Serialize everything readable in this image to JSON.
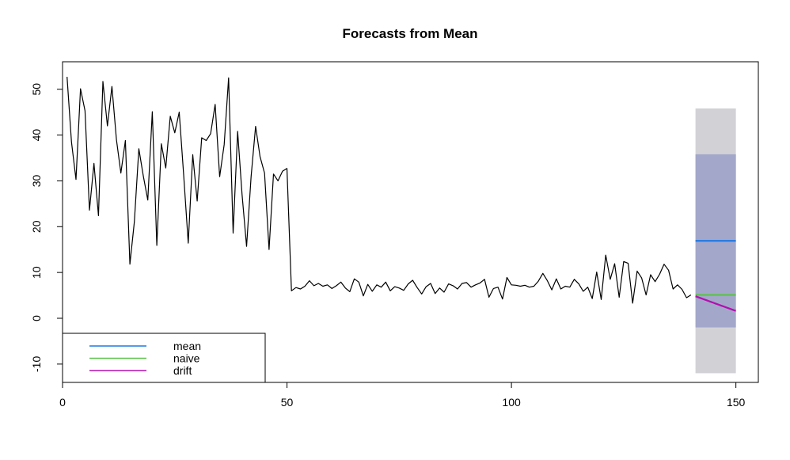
{
  "chart_data": {
    "type": "line",
    "title": "Forecasts from Mean",
    "xlabel": "",
    "ylabel": "",
    "xlim": [
      0,
      155
    ],
    "ylim": [
      -14,
      56
    ],
    "xticks": [
      0,
      50,
      100,
      150
    ],
    "yticks": [
      -10,
      0,
      10,
      20,
      30,
      40,
      50
    ],
    "grid": false,
    "history": {
      "x": [
        1,
        2,
        3,
        4,
        5,
        6,
        7,
        8,
        9,
        10,
        11,
        12,
        13,
        14,
        15,
        16,
        17,
        18,
        19,
        20,
        21,
        22,
        23,
        24,
        25,
        26,
        27,
        28,
        29,
        30,
        31,
        32,
        33,
        34,
        35,
        36,
        37,
        38,
        39,
        40,
        41,
        42,
        43,
        44,
        45,
        46,
        47,
        48,
        49,
        50,
        51,
        52,
        53,
        54,
        55,
        56,
        57,
        58,
        59,
        60,
        61,
        62,
        63,
        64,
        65,
        66,
        67,
        68,
        69,
        70,
        71,
        72,
        73,
        74,
        75,
        76,
        77,
        78,
        79,
        80,
        81,
        82,
        83,
        84,
        85,
        86,
        87,
        88,
        89,
        90,
        91,
        92,
        93,
        94,
        95,
        96,
        97,
        98,
        99,
        100,
        101,
        102,
        103,
        104,
        105,
        106,
        107,
        108,
        109,
        110,
        111,
        112,
        113,
        114,
        115,
        116,
        117,
        118,
        119,
        120,
        121,
        122,
        123,
        124,
        125,
        126,
        127,
        128,
        129,
        130,
        131,
        132,
        133,
        134,
        135,
        136,
        137,
        138,
        139,
        140
      ],
      "y": [
        52.7,
        38.5,
        30.3,
        50.1,
        45.3,
        23.6,
        33.8,
        22.4,
        51.7,
        42.0,
        50.6,
        39.0,
        31.7,
        38.8,
        11.8,
        21.0,
        37.0,
        31.0,
        25.8,
        45.1,
        15.9,
        38.1,
        32.8,
        44.1,
        40.5,
        45.0,
        31.1,
        16.4,
        35.7,
        25.6,
        39.4,
        38.8,
        40.3,
        46.7,
        30.9,
        37.9,
        52.5,
        18.6,
        40.8,
        27.0,
        15.7,
        30.9,
        41.9,
        35.3,
        31.7,
        15.0,
        31.5,
        30.0,
        32.1,
        32.7,
        6.0,
        6.7,
        6.4,
        7.0,
        8.2,
        7.1,
        7.6,
        7.0,
        7.3,
        6.5,
        7.1,
        7.9,
        6.6,
        5.8,
        8.6,
        7.9,
        4.9,
        7.4,
        5.9,
        7.3,
        6.8,
        7.9,
        6.0,
        6.9,
        6.6,
        6.1,
        7.5,
        8.3,
        6.7,
        5.3,
        6.9,
        7.6,
        5.4,
        6.6,
        5.7,
        7.5,
        7.1,
        6.4,
        7.6,
        7.8,
        6.8,
        7.3,
        7.7,
        8.5,
        4.6,
        6.5,
        6.8,
        4.2,
        8.9,
        7.3,
        7.2,
        7.0,
        7.2,
        6.8,
        7.0,
        8.1,
        9.8,
        8.2,
        6.2,
        8.6,
        6.4,
        7.0,
        6.8,
        8.5,
        7.5,
        5.9,
        6.8,
        4.3,
        10.1,
        4.1,
        13.8,
        8.5,
        11.9,
        4.6,
        12.4,
        12.0,
        3.3,
        10.3,
        8.8,
        5.1,
        9.5,
        8.0,
        9.6,
        11.8,
        10.5,
        6.4,
        7.3,
        6.3,
        4.5,
        5.1
      ]
    },
    "forecast_x": [
      141,
      150
    ],
    "interval_80": [
      -2.0,
      35.8
    ],
    "interval_95": [
      -12.0,
      45.8
    ],
    "series": [
      {
        "name": "mean",
        "color": "#1E78E6",
        "x": [
          141,
          150
        ],
        "values": [
          16.9,
          16.9
        ]
      },
      {
        "name": "naive",
        "color": "#5CC34A",
        "x": [
          141,
          150
        ],
        "values": [
          5.1,
          5.1
        ]
      },
      {
        "name": "drift",
        "color": "#B40FAF",
        "x": [
          141,
          150
        ],
        "values": [
          4.8,
          1.6
        ]
      }
    ],
    "colors": {
      "history": "#000000",
      "interval_80": "#A3A7CA",
      "interval_95": "#D2D2D6"
    },
    "legend": {
      "position": "bottom-left",
      "entries": [
        "mean",
        "naive",
        "drift"
      ]
    }
  }
}
